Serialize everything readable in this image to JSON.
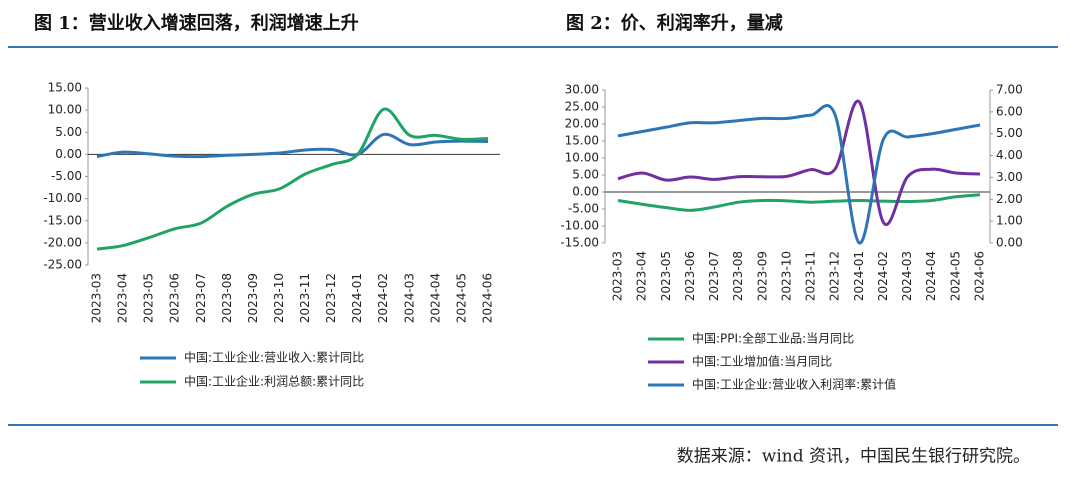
{
  "chart_data": [
    {
      "type": "line",
      "title": "图 1：营业收入增速回落，利润增速上升",
      "categories": [
        "2023-03",
        "2023-04",
        "2023-05",
        "2023-06",
        "2023-07",
        "2023-08",
        "2023-09",
        "2023-10",
        "2023-11",
        "2023-12",
        "2024-01",
        "2024-02",
        "2024-03",
        "2024-04",
        "2024-05",
        "2024-06"
      ],
      "series": [
        {
          "name": "中国:工业企业:营业收入:累计同比",
          "color": "#2e75b6",
          "values": [
            -0.5,
            0.5,
            0.1,
            -0.4,
            -0.5,
            -0.2,
            0.0,
            0.3,
            1.0,
            1.1,
            0.0,
            4.5,
            2.2,
            2.8,
            3.0,
            2.9
          ]
        },
        {
          "name": "中国:工业企业:利润总额:累计同比",
          "color": "#21a366",
          "values": [
            -21.4,
            -20.6,
            -18.8,
            -16.8,
            -15.5,
            -11.7,
            -9.0,
            -7.8,
            -4.4,
            -2.3,
            0.0,
            10.2,
            4.3,
            4.3,
            3.4,
            3.6
          ]
        }
      ],
      "ylim": [
        -25,
        15
      ],
      "yticks": [
        {
          "value": 15,
          "label": "15.00"
        },
        {
          "value": 10,
          "label": "10.00"
        },
        {
          "value": 5,
          "label": "5.00"
        },
        {
          "value": 0,
          "label": "0.00"
        },
        {
          "value": -5,
          "label": "-5.00"
        },
        {
          "value": -10,
          "label": "-10.00"
        },
        {
          "value": -15,
          "label": "-15.00"
        },
        {
          "value": -20,
          "label": "-20.00"
        },
        {
          "value": -25,
          "label": "-25.00"
        }
      ]
    },
    {
      "type": "line",
      "title": "图 2：价、利润率升，量减",
      "categories": [
        "2023-03",
        "2023-04",
        "2023-05",
        "2023-06",
        "2023-07",
        "2023-08",
        "2023-09",
        "2023-10",
        "2023-11",
        "2023-12",
        "2024-01",
        "2024-02",
        "2024-03",
        "2024-04",
        "2024-05",
        "2024-06"
      ],
      "series": [
        {
          "name": "中国:PPI:全部工业品:当月同比",
          "color": "#21a366",
          "values": [
            -2.5,
            -3.6,
            -4.6,
            -5.4,
            -4.4,
            -3.0,
            -2.5,
            -2.6,
            -3.0,
            -2.7,
            -2.5,
            -2.7,
            -2.8,
            -2.5,
            -1.4,
            -0.8
          ]
        },
        {
          "name": "中国:工业增加值:当月同比",
          "color": "#7030a0",
          "values": [
            3.9,
            5.6,
            3.5,
            4.4,
            3.7,
            4.5,
            4.5,
            4.6,
            6.6,
            6.8,
            26.5,
            -9.0,
            4.5,
            6.7,
            5.6,
            5.3
          ]
        },
        {
          "name": "中国:工业企业:营业收入利润率:累计值",
          "color": "#2e75b6",
          "axis": "y2",
          "values": [
            4.9,
            5.1,
            5.3,
            5.5,
            5.5,
            5.6,
            5.7,
            5.7,
            5.85,
            5.85,
            0.0,
            4.75,
            4.85,
            5.0,
            5.2,
            5.4
          ]
        }
      ],
      "ylim": [
        -15,
        30
      ],
      "yticks": [
        {
          "value": 30,
          "label": "30.00"
        },
        {
          "value": 25,
          "label": "25.00"
        },
        {
          "value": 20,
          "label": "20.00"
        },
        {
          "value": 15,
          "label": "15.00"
        },
        {
          "value": 10,
          "label": "10.00"
        },
        {
          "value": 5,
          "label": "5.00"
        },
        {
          "value": 0,
          "label": "0.00"
        },
        {
          "value": -5,
          "label": "-5.00"
        },
        {
          "value": -10,
          "label": "-10.00"
        },
        {
          "value": -15,
          "label": "-15.00"
        }
      ],
      "y2lim": [
        0,
        7
      ],
      "y2ticks": [
        {
          "value": 7,
          "label": "7.00"
        },
        {
          "value": 6,
          "label": "6.00"
        },
        {
          "value": 5,
          "label": "5.00"
        },
        {
          "value": 4,
          "label": "4.00"
        },
        {
          "value": 3,
          "label": "3.00"
        },
        {
          "value": 2,
          "label": "2.00"
        },
        {
          "value": 1,
          "label": "1.00"
        },
        {
          "value": 0,
          "label": "0.00"
        }
      ]
    }
  ],
  "source": "数据来源：wind 资讯，中国民生银行研究院。"
}
